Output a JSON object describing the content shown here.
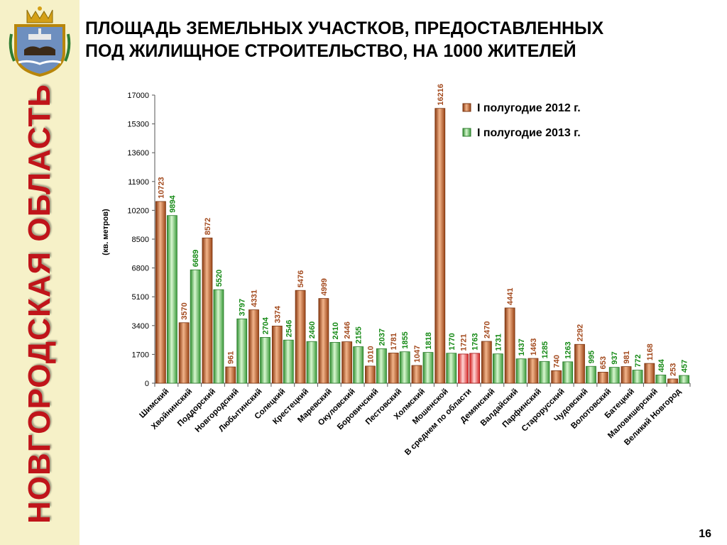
{
  "sidebar": {
    "vertical_title": "НОВГОРОДСКАЯ ОБЛАСТЬ",
    "emblem_icon": "coat-of-arms-icon"
  },
  "header": {
    "title_line1": "ПЛОЩАДЬ ЗЕМЕЛЬНЫХ УЧАСТКОВ, ПРЕДОСТАВЛЕННЫХ",
    "title_line2": "ПОД ЖИЛИЩНОЕ СТРОИТЕЛЬСТВО, НА 1000 ЖИТЕЛЕЙ"
  },
  "page_number": "16",
  "colors": {
    "series_2012": "#c8612e",
    "series_2013": "#3fae3f",
    "average_highlight": "#ee3b3b",
    "label_2012": "#a34a1e",
    "label_2013": "#168a16",
    "sidebar_bg": "#f6f1c8",
    "sidebar_title": "#c0141a"
  },
  "chart_data": {
    "type": "bar",
    "title": "",
    "xlabel": "",
    "ylabel": "(кв. метров)",
    "ylim": [
      0,
      17000
    ],
    "yticks": [
      "17000",
      "15300",
      "13600",
      "11900",
      "10200",
      "8500",
      "6800",
      "5100",
      "3400",
      "1700",
      "0"
    ],
    "grid": false,
    "legend_position": "top-right",
    "highlight_category": "В среднем по области",
    "categories": [
      "Шимский",
      "Хвойнинский",
      "Поддорский",
      "Новгородский",
      "Любытинский",
      "Солецкий",
      "Крестецкий",
      "Маревский",
      "Окуловский",
      "Боровичский",
      "Пестовский",
      "Холмский",
      "Мошенской",
      "В среднем по области",
      "Демянский",
      "Валдайский",
      "Парфинский",
      "Старорусский",
      "Чудовский",
      "Волотовский",
      "Батецкий",
      "Маловишерский",
      "Великий Новгород"
    ],
    "series": [
      {
        "name": "I полугодие 2012 г.",
        "values": [
          10723,
          3570,
          8572,
          961,
          4331,
          3374,
          5476,
          4999,
          2446,
          1010,
          1781,
          1047,
          16216,
          1721,
          2470,
          4441,
          1463,
          740,
          2292,
          653,
          981,
          1168,
          253
        ]
      },
      {
        "name": "I полугодие 2013 г.",
        "values": [
          9894,
          6689,
          5520,
          3797,
          2704,
          2546,
          2460,
          2410,
          2155,
          2037,
          1855,
          1818,
          1770,
          1763,
          1731,
          1437,
          1285,
          1263,
          995,
          937,
          772,
          484,
          457
        ]
      }
    ]
  }
}
